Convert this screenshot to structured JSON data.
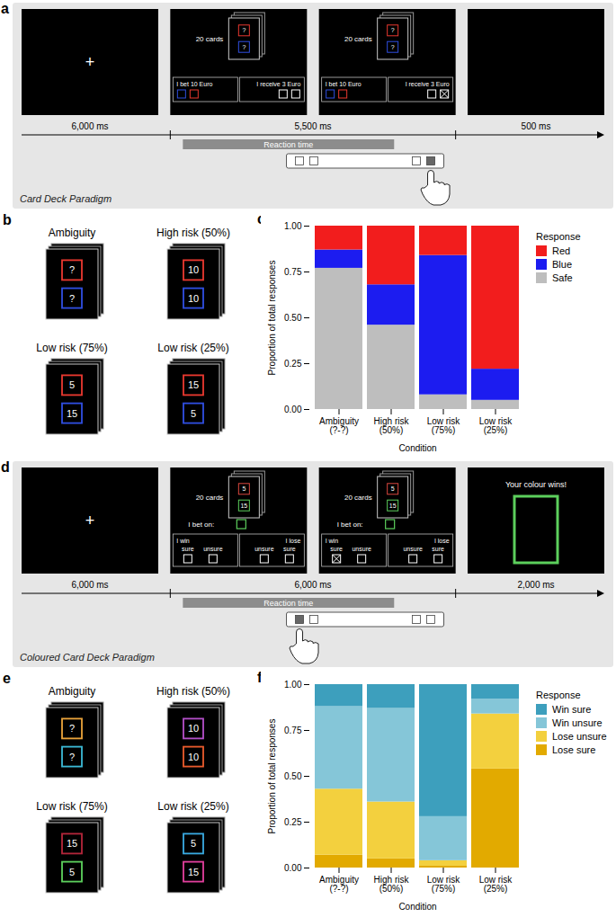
{
  "panel_letters": [
    "a",
    "b",
    "c",
    "d",
    "e",
    "f"
  ],
  "paradigms": [
    {
      "name": "Card Deck Paradigm",
      "fixation": "+",
      "deck_size": "20 cards",
      "cards": [
        {
          "text": "?",
          "color": "#e8382f"
        },
        {
          "text": "?",
          "color": "#2f4ee0"
        }
      ],
      "option_groups": [
        {
          "title": "I bet 10 Euro",
          "options": [
            {
              "color": "#2f4ee0"
            },
            {
              "color": "#e8382f"
            }
          ]
        },
        {
          "title": "I receive 3 Euro",
          "options": [
            {
              "color": "#ffffff"
            },
            {
              "color": "#ffffff"
            }
          ]
        }
      ],
      "selected_option": 3,
      "durations": [
        "6,000 ms",
        "5,500 ms",
        "500 ms"
      ],
      "reaction_time": "Reaction time"
    },
    {
      "name": "Coloured Card Deck Paradigm",
      "fixation": "+",
      "deck_size": "20 cards",
      "cards": [
        {
          "text": "5",
          "color": "#d9473f"
        },
        {
          "text": "15",
          "color": "#5ccf5c"
        }
      ],
      "prompt": {
        "text": "I bet on:",
        "color": "#5ccf5c"
      },
      "option_groups": [
        {
          "title": "I win",
          "options": [
            {
              "label": "sure",
              "color": "#ffffff"
            },
            {
              "label": "unsure",
              "color": "#ffffff"
            }
          ]
        },
        {
          "title": "I lose",
          "options": [
            {
              "label": "unsure",
              "color": "#ffffff"
            },
            {
              "label": "sure",
              "color": "#ffffff"
            }
          ]
        }
      ],
      "selected_option": 0,
      "feedback": {
        "text": "Your colour wins!",
        "color": "#5ccf5c"
      },
      "durations": [
        "6,000 ms",
        "6,000 ms",
        "2,000 ms"
      ],
      "reaction_time": "Reaction time"
    }
  ],
  "deck_sets": [
    {
      "decks": [
        {
          "title": "Ambiguity",
          "cards": [
            {
              "text": "?",
              "color": "#e8382f"
            },
            {
              "text": "?",
              "color": "#2f4ee0"
            }
          ]
        },
        {
          "title": "High risk (50%)",
          "cards": [
            {
              "text": "10",
              "color": "#e8382f"
            },
            {
              "text": "10",
              "color": "#2f4ee0"
            }
          ]
        },
        {
          "title": "Low risk (75%)",
          "cards": [
            {
              "text": "5",
              "color": "#e8382f"
            },
            {
              "text": "15",
              "color": "#2f4ee0"
            }
          ]
        },
        {
          "title": "Low risk (25%)",
          "cards": [
            {
              "text": "15",
              "color": "#e8382f"
            },
            {
              "text": "5",
              "color": "#2f4ee0"
            }
          ]
        }
      ]
    },
    {
      "decks": [
        {
          "title": "Ambiguity",
          "cards": [
            {
              "text": "?",
              "color": "#e8a23a"
            },
            {
              "text": "?",
              "color": "#3bb8d4"
            }
          ]
        },
        {
          "title": "High risk (50%)",
          "cards": [
            {
              "text": "10",
              "color": "#b24fc8"
            },
            {
              "text": "10",
              "color": "#e85a2c"
            }
          ]
        },
        {
          "title": "Low risk (75%)",
          "cards": [
            {
              "text": "15",
              "color": "#b3263a"
            },
            {
              "text": "5",
              "color": "#5ccf5c"
            }
          ]
        },
        {
          "title": "Low risk (25%)",
          "cards": [
            {
              "text": "5",
              "color": "#39a9e0"
            },
            {
              "text": "15",
              "color": "#e03f9c"
            }
          ]
        }
      ]
    }
  ],
  "chart_data": [
    {
      "type": "bar",
      "stacked": true,
      "xlabel": "Condition",
      "ylabel": "Proportion of total responses",
      "categories": [
        "Ambiguity (?-?)",
        "High risk (50%)",
        "Low risk (75%)",
        "Low risk (25%)"
      ],
      "series": [
        {
          "name": "Red",
          "color": "#f21d1d",
          "values": [
            0.13,
            0.32,
            0.16,
            0.78
          ]
        },
        {
          "name": "Blue",
          "color": "#1c1cf0",
          "values": [
            0.1,
            0.22,
            0.76,
            0.17
          ]
        },
        {
          "name": "Safe",
          "color": "#bebebe",
          "values": [
            0.77,
            0.46,
            0.08,
            0.05
          ]
        }
      ],
      "legend_title": "Response",
      "legend": "right",
      "ylim": [
        0,
        1
      ],
      "yticks": [
        {
          "value": 0,
          "label": "0.00"
        },
        0.25,
        {
          "value": 0.5,
          "label": "0.50"
        },
        0.75,
        {
          "value": 1,
          "label": "1.00"
        }
      ],
      "grid": false
    },
    {
      "type": "bar",
      "stacked": true,
      "xlabel": "Condition",
      "ylabel": "Proportion of total responses",
      "categories": [
        "Ambiguity (?-?)",
        "High risk (50%)",
        "Low risk (75%)",
        "Low risk (25%)"
      ],
      "series": [
        {
          "name": "Win sure",
          "color": "#3d9fbd",
          "values": [
            0.12,
            0.13,
            0.72,
            0.08
          ]
        },
        {
          "name": "Win unsure",
          "color": "#85c6d8",
          "values": [
            0.45,
            0.51,
            0.24,
            0.08
          ]
        },
        {
          "name": "Lose unsure",
          "color": "#f3d03e",
          "values": [
            0.36,
            0.31,
            0.03,
            0.3
          ]
        },
        {
          "name": "Lose sure",
          "color": "#e2aa00",
          "values": [
            0.07,
            0.05,
            0.01,
            0.54
          ]
        }
      ],
      "legend_title": "Response",
      "legend": "right",
      "ylim": [
        0,
        1
      ],
      "yticks": [
        {
          "value": 0,
          "label": "0.00"
        },
        0.25,
        {
          "value": 0.5,
          "label": "0.50"
        },
        0.75,
        {
          "value": 1,
          "label": "1.00"
        }
      ],
      "grid": false
    }
  ]
}
